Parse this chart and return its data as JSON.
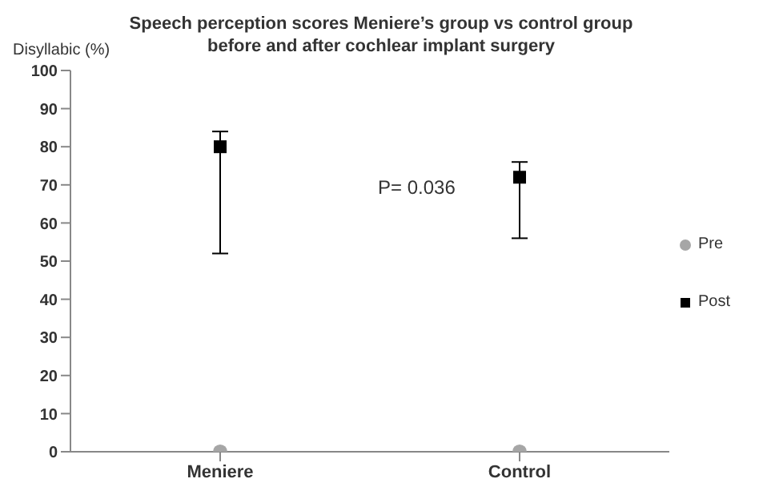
{
  "chart_data": {
    "type": "scatter",
    "title": "Speech perception scores Meniere’s group vs control group\nbefore and after cochlear implant surgery",
    "ylabel": "Disyllabic (%)",
    "categories": [
      "Meniere",
      "Control"
    ],
    "series": [
      {
        "name": "Pre",
        "color": "#a6a6a6",
        "marker": "circle",
        "values": [
          0,
          0
        ]
      },
      {
        "name": "Post",
        "color": "#000000",
        "marker": "square",
        "values": [
          80,
          72
        ],
        "errors": [
          [
            52,
            84
          ],
          [
            56,
            76
          ]
        ]
      }
    ],
    "ylim": [
      0,
      100
    ],
    "yticks": [
      0,
      10,
      20,
      30,
      40,
      50,
      60,
      70,
      80,
      90,
      100
    ],
    "grid": false,
    "legend": "right",
    "annotations": [
      "P= 0.036"
    ]
  }
}
